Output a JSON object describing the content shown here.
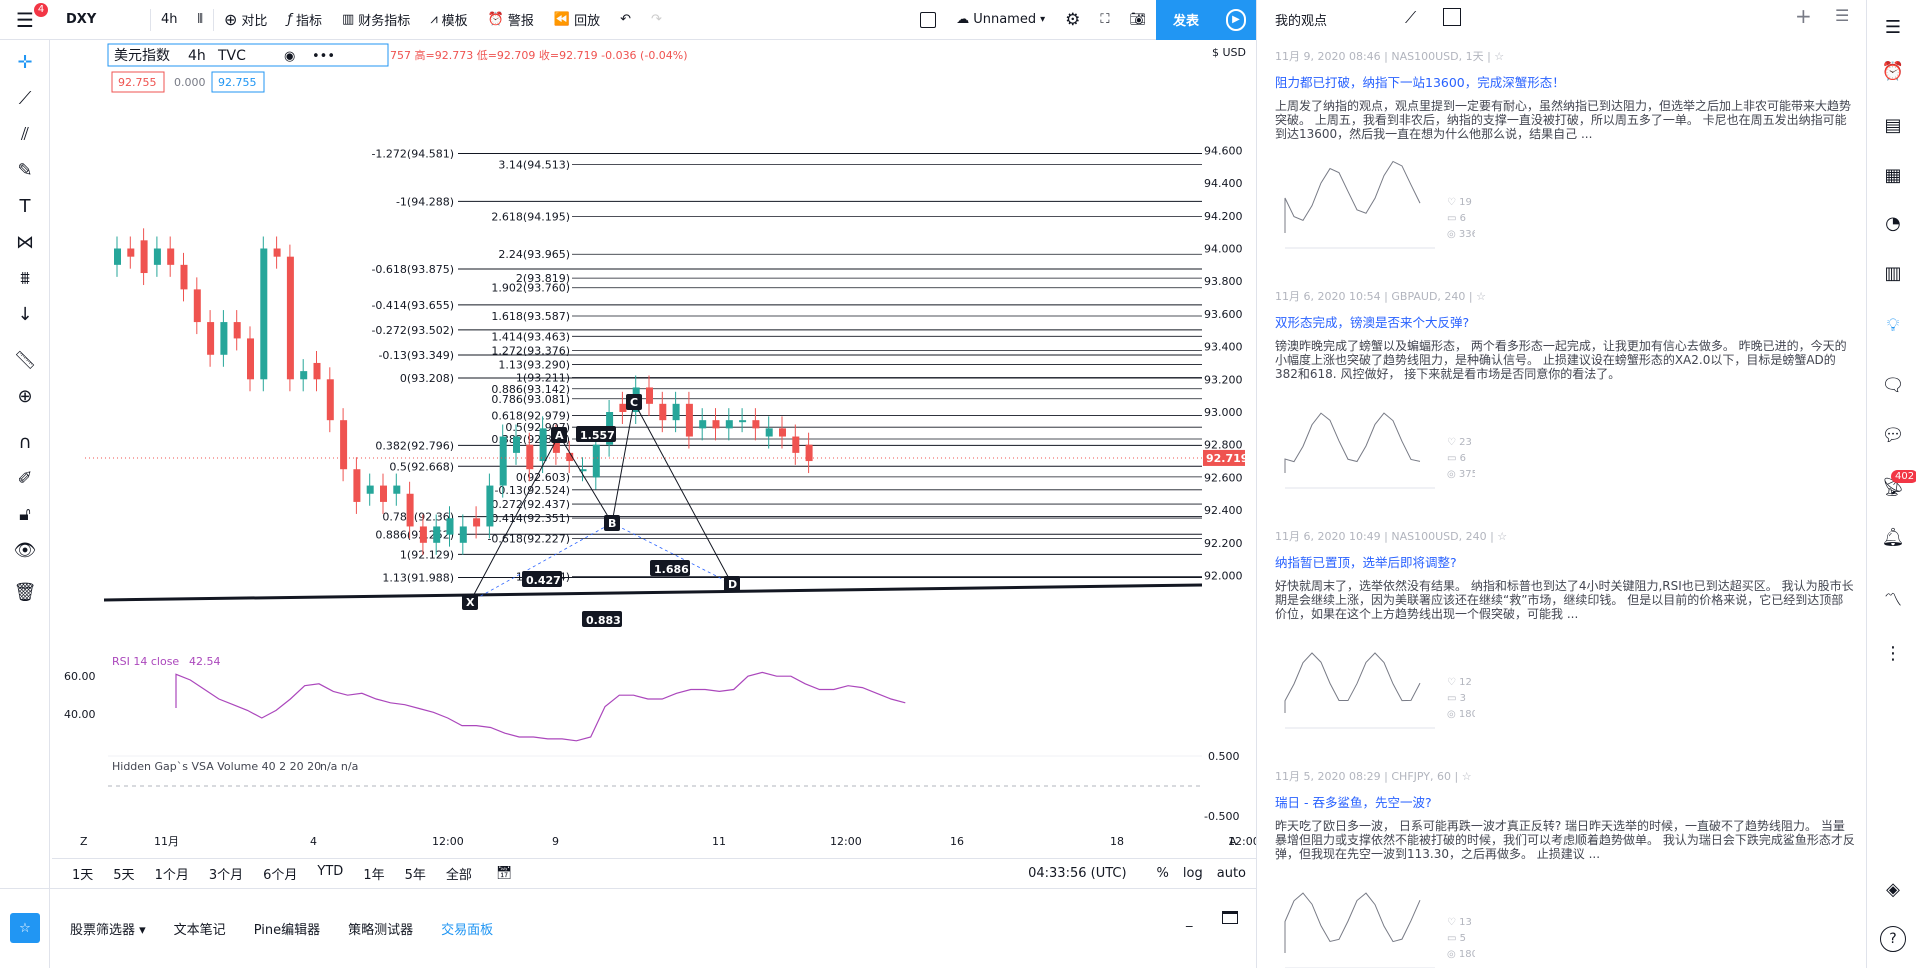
{
  "topbar": {
    "symbol": "DXY",
    "badge": "4",
    "interval": "4h",
    "compare": "对比",
    "indicators": "指标",
    "financials": "财务指标",
    "templates": "模板",
    "alert": "警报",
    "replay": "回放",
    "layout_name": "Unnamed",
    "publish": "发表"
  },
  "legend": {
    "name": "美元指数",
    "interval": "4h",
    "source": "TVC",
    "ohlc": "757 高=92.773 低=92.709 收=92.719 -0.036 (-0.04%)",
    "bid": "92.755",
    "spread": "0.000",
    "ask": "92.755"
  },
  "price_axis": {
    "unit": "$ USD",
    "ticks": [
      "94.600",
      "94.400",
      "94.200",
      "94.000",
      "93.800",
      "93.600",
      "93.400",
      "93.200",
      "93.000",
      "92.800",
      "92.600",
      "92.400",
      "92.200",
      "92.000"
    ],
    "current": "92.719",
    "rsi_ticks": [
      "60.00",
      "40.00"
    ],
    "vol_ticks": [
      "0.500",
      "-0.500"
    ]
  },
  "time_axis": {
    "ticks": [
      "11月",
      "4",
      "12:00",
      "9",
      "11",
      "12:00",
      "16",
      "18",
      "12:00"
    ]
  },
  "fib_left": [
    "-1.272(94.581)",
    "-1(94.288)",
    "-0.618(93.875)",
    "-0.414(93.655)",
    "-0.272(93.502)",
    "-0.13(93.349)",
    "0(93.208)",
    "0.382(92.796)",
    "0.5(92.668)",
    "0.786(92.36)",
    "0.886(92.252)",
    "1(92.129)",
    "1.13(91.988)"
  ],
  "fib_right": [
    "3.14(94.513)",
    "2.618(94.195)",
    "2.24(93.965)",
    "2(93.819)",
    "1.902(93.760)",
    "1.618(93.587)",
    "1.414(93.463)",
    "1.272(93.376)",
    "1.13(93.290)",
    "1(93.211)",
    "0.886(93.142)",
    "0.786(93.081)",
    "0.618(92.979)",
    "0.5(92.907)",
    "0.382(92.835)",
    "0(92.603)",
    "-0.13(92.524)",
    "-0.272(92.437)",
    "-0.414(92.351)",
    "-0.618(92.227)",
    "-1(91.994)"
  ],
  "pattern": {
    "points": [
      "X",
      "A",
      "B",
      "C",
      "D"
    ],
    "ratios": [
      "1.557",
      "0.427",
      "1.686",
      "0.883"
    ]
  },
  "rsi": {
    "label": "RSI 14 close",
    "value": "42.54"
  },
  "volume": {
    "label": "Hidden Gap`s VSA Volume 40 2 20 20",
    "values": "n/a  n/a"
  },
  "bottom_bar": {
    "ranges": [
      "1天",
      "5天",
      "1个月",
      "3个月",
      "6个月",
      "YTD",
      "1年",
      "5年",
      "全部"
    ],
    "clock": "04:33:56 (UTC)",
    "percent": "%",
    "log": "log",
    "auto": "auto",
    "z": "Z",
    "a": "A"
  },
  "panel_tabs": [
    "股票筛选器",
    "文本笔记",
    "Pine编辑器",
    "策略测试器",
    "交易面板"
  ],
  "right_panel": {
    "title": "我的观点",
    "ideas": [
      {
        "meta": "11月 9, 2020 08:46 | NAS100USD, 1天 |",
        "title": "阻力都已打破，纳指下一站13600，完成深蟹形态！",
        "body": "上周发了纳指的观点，观点里提到一定要有耐心，虽然纳指已到达阻力，但选举之后加上非农可能带来大趋势突破。 上周五，我看到非农后，纳指的支撑一直没被打破，所以周五多了一单。 卡尼也在周五发出纳指可能到达13600，然后我一直在想为什么他那么说，结果自己 ...",
        "likes": "19",
        "comments": "6",
        "views": "336"
      },
      {
        "meta": "11月 6, 2020 10:54 | GBPAUD, 240 |",
        "title": "双形态完成，镑澳是否来个大反弹?",
        "body": "镑澳昨晚完成了螃蟹以及蝙蝠形态， 两个看多形态一起完成，让我更加有信心去做多。 昨晚已进的，今天的小幅度上涨也突破了趋势线阻力，是种确认信号。 止损建议设在螃蟹形态的XA2.0以下，目标是螃蟹AD的382和618. 风控做好， 接下来就是看市场是否同意你的看法了。",
        "likes": "23",
        "comments": "6",
        "views": "375"
      },
      {
        "meta": "11月 6, 2020 10:49 | NAS100USD, 240 |",
        "title": "纳指暂已置顶，选举后即将调整?",
        "body": "好快就周末了，选举依然没有结果。 纳指和标普也到达了4小时关键阻力,RSI也已到达超买区。 我认为股市长期是会继续上涨，因为美联署应该还在继续“救”市场，继续印钱。 但是以目前的价格来说，它已经到达顶部价位，如果在这个上方趋势线出现一个假突破，可能我 ...",
        "likes": "12",
        "comments": "3",
        "views": "180"
      },
      {
        "meta": "11月 5, 2020 08:29 | CHFJPY, 60 |",
        "title": "瑞日 - 吞多鲨鱼，先空一波?",
        "body": "昨天吃了欧日多一波， 日系可能再跌一波才真正反转? 瑞日昨天选举的时候，一直破不了趋势线阻力。 当量暴增但阻力或支撑依然不能被打破的时候，我们可以考虑顺着趋势做单。 我认为瑞日会下跌完成鲨鱼形态才反弹，但我现在先空一波到113.30，之后再做多。 止损建议 ...",
        "likes": "13",
        "comments": "5",
        "views": "180"
      }
    ]
  },
  "notifications_badge": "402",
  "colors": {
    "up": "#26a69a",
    "down": "#ef5350",
    "accent": "#2196f3",
    "rsi": "#ab47bc",
    "current_price": "#ef5350"
  }
}
